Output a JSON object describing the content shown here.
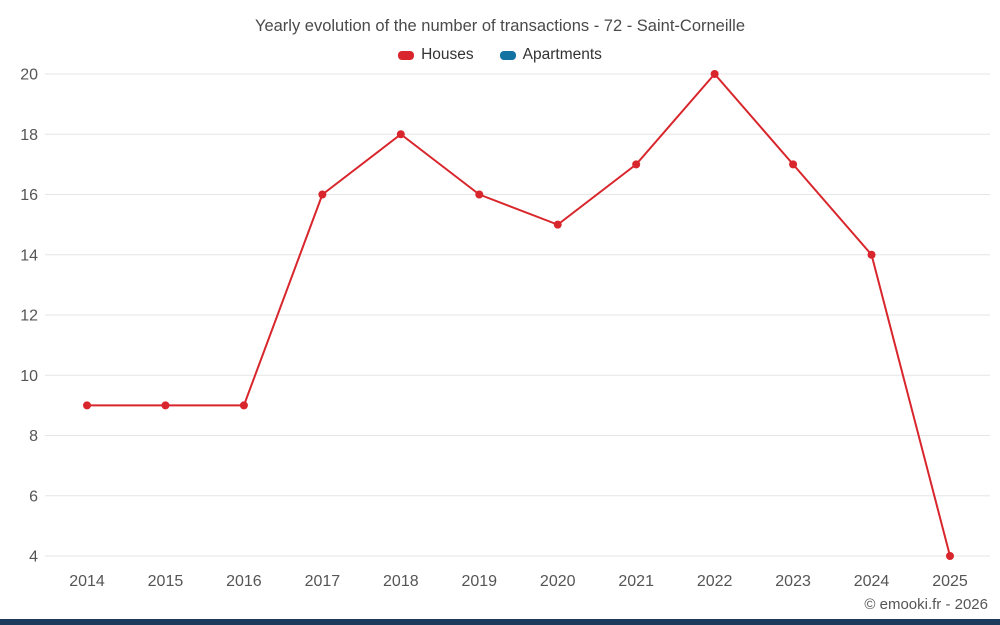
{
  "title": "Yearly evolution of the number of transactions - 72 - Saint-Corneille",
  "legend": [
    {
      "label": "Houses",
      "color": "#d8262c"
    },
    {
      "label": "Apartments",
      "color": "#1272a2"
    }
  ],
  "footer": {
    "credit": "© emooki.fr - 2026"
  },
  "colors": {
    "gridline": "#e6e6e6",
    "axis_text": "#555555",
    "bottom_bar": "#1b3a5c"
  },
  "chart_data": {
    "type": "line",
    "title": "Yearly evolution of the number of transactions - 72 - Saint-Corneille",
    "x": [
      2014,
      2015,
      2016,
      2017,
      2018,
      2019,
      2020,
      2021,
      2022,
      2023,
      2024,
      2025
    ],
    "series": [
      {
        "name": "Houses",
        "color": "#d8262c",
        "values": [
          9,
          9,
          9,
          16,
          18,
          16,
          15,
          17,
          20,
          17,
          14,
          4
        ]
      },
      {
        "name": "Apartments",
        "color": "#1272a2",
        "values": []
      }
    ],
    "xlabel": "",
    "ylabel": "",
    "ylim": [
      4,
      20
    ],
    "yticks": [
      4,
      6,
      8,
      10,
      12,
      14,
      16,
      18,
      20
    ],
    "grid": "horizontal",
    "legend_position": "top",
    "marker": "circle"
  }
}
